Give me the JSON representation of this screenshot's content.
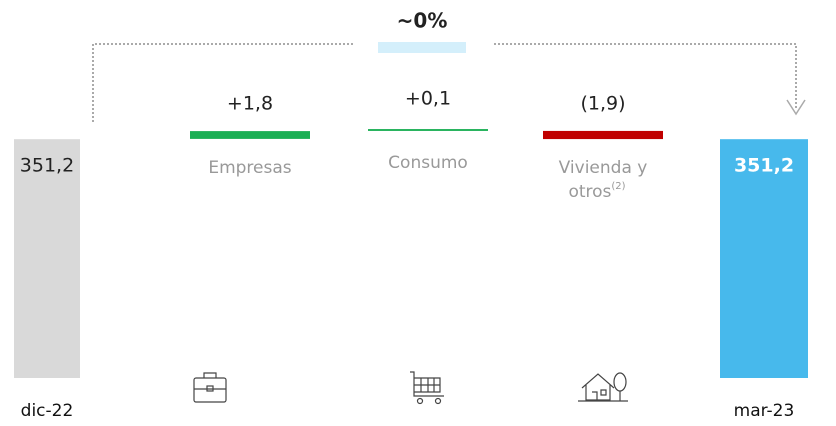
{
  "chart_data": {
    "type": "waterfall",
    "annotation": "~0%",
    "categories": [
      "dic-22",
      "Empresas",
      "Consumo",
      "Vivienda y otros",
      "mar-23"
    ],
    "category_footnotes": [
      null,
      null,
      null,
      "(2)",
      null
    ],
    "kinds": [
      "total",
      "delta",
      "delta",
      "delta",
      "total"
    ],
    "values": [
      351.2,
      1.8,
      0.1,
      -1.9,
      351.2
    ],
    "value_labels": [
      "351,2",
      "+1,8",
      "+0,1",
      "(1,9)",
      "351,2"
    ],
    "colors": [
      "#d9d9d9",
      "#1aaf54",
      "#1aaf54",
      "#c00000",
      "#47b9ec"
    ]
  }
}
